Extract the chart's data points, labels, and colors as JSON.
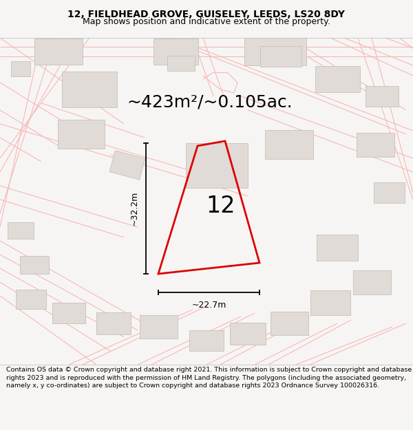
{
  "title_line1": "12, FIELDHEAD GROVE, GUISELEY, LEEDS, LS20 8DY",
  "title_line2": "Map shows position and indicative extent of the property.",
  "area_label": "~423m²/~0.105ac.",
  "number_label": "12",
  "dim_height": "~32.2m",
  "dim_width": "~22.7m",
  "footer_text": "Contains OS data © Crown copyright and database right 2021. This information is subject to Crown copyright and database rights 2023 and is reproduced with the permission of HM Land Registry. The polygons (including the associated geometry, namely x, y co-ordinates) are subject to Crown copyright and database rights 2023 Ordnance Survey 100026316.",
  "bg_color": "#f7f5f3",
  "map_bg": "#ffffff",
  "road_color": "#f5b8b8",
  "road_lw": 0.8,
  "building_color": "#e0dbd6",
  "building_stroke": "#c8c0b8",
  "main_plot_color": "#dd0000",
  "title_bg": "#f7f5f3",
  "footer_bg": "#ffffff",
  "title_fontsize": 10,
  "subtitle_fontsize": 9,
  "area_fontsize": 18,
  "number_fontsize": 24,
  "dim_fontsize": 9,
  "footer_fontsize": 6.8
}
